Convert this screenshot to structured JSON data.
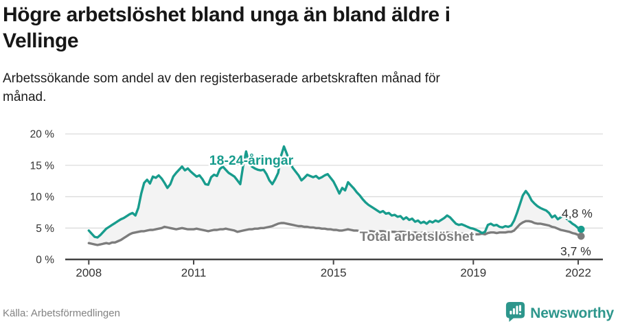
{
  "header": {
    "title_line1": "Högre arbetslöshet bland unga än bland äldre i",
    "title_line2": "Vellinge",
    "subtitle_line1": "Arbetssökande som andel av den registerbaserade arbetskraften månad för",
    "subtitle_line2": "månad."
  },
  "footer": {
    "source": "Källa: Arbetsförmedlingen",
    "brand_name": "Newsworthy",
    "brand_icon": "newsworthy-badge-icon"
  },
  "colors": {
    "youth": "#189c8d",
    "total": "#7c7c7c",
    "area_fill": "#f3f3f3",
    "grid": "#dcdcdc",
    "axis": "#424242",
    "tick_text": "#333333",
    "annotation_text": "#2f2f2f",
    "brand": "#2d968c",
    "source_text": "#828282"
  },
  "chart_data": {
    "type": "line",
    "title": "Högre arbetslöshet bland unga än bland äldre i Vellinge",
    "subtitle": "Arbetssökande som andel av den registerbaserade arbetskraften månad för månad.",
    "unit": "%",
    "frequency": "monthly",
    "x_start": "2008-01",
    "x_end": "2022-02",
    "ylim": [
      0,
      20
    ],
    "grid": true,
    "legend_position": "inline-labels",
    "y_ticks": [
      {
        "label": "20 %",
        "value": 20
      },
      {
        "label": "15 %",
        "value": 15
      },
      {
        "label": "10 %",
        "value": 10
      },
      {
        "label": "5 %",
        "value": 5
      },
      {
        "label": "0 %",
        "value": 0
      }
    ],
    "x_ticks": [
      {
        "label": "2008",
        "month": 0
      },
      {
        "label": "2011",
        "month": 36
      },
      {
        "label": "2015",
        "month": 84
      },
      {
        "label": "2019",
        "month": 132
      },
      {
        "label": "2022",
        "month": 168
      }
    ],
    "series": [
      {
        "name": "18-24-åringar",
        "inline_label": "18-24-åringar",
        "end_label": "4,8 %",
        "last_value": 4.8,
        "color": "#189c8d",
        "values": [
          4.6,
          4.1,
          3.6,
          3.5,
          3.9,
          4.4,
          4.9,
          5.2,
          5.5,
          5.8,
          6.1,
          6.4,
          6.6,
          6.9,
          7.2,
          7.4,
          7.0,
          8.2,
          10.5,
          12.2,
          12.7,
          12.1,
          13.2,
          13.0,
          13.4,
          12.9,
          12.2,
          11.4,
          12.0,
          13.2,
          13.8,
          14.3,
          14.8,
          14.2,
          14.5,
          14.0,
          13.6,
          13.2,
          13.4,
          12.8,
          12.0,
          11.9,
          13.1,
          13.5,
          13.3,
          14.4,
          14.8,
          14.3,
          13.8,
          13.5,
          13.2,
          12.6,
          12.0,
          15.0,
          17.2,
          15.4,
          14.8,
          14.5,
          14.3,
          14.2,
          14.3,
          13.6,
          12.6,
          12.0,
          12.8,
          13.8,
          16.5,
          18.0,
          16.8,
          15.5,
          14.6,
          14.0,
          13.4,
          12.6,
          13.0,
          13.5,
          13.3,
          13.1,
          13.3,
          12.9,
          13.1,
          13.4,
          13.6,
          13.0,
          12.4,
          11.5,
          10.5,
          11.4,
          11.0,
          12.3,
          11.8,
          11.3,
          10.7,
          10.2,
          9.6,
          9.1,
          8.7,
          8.4,
          8.1,
          7.8,
          7.5,
          7.7,
          7.3,
          7.4,
          7.0,
          7.1,
          6.8,
          6.9,
          6.4,
          6.7,
          6.3,
          6.5,
          6.0,
          6.2,
          5.8,
          6.0,
          5.7,
          6.1,
          5.9,
          6.2,
          6.0,
          6.3,
          6.6,
          7.0,
          6.7,
          6.2,
          5.7,
          5.5,
          5.6,
          5.4,
          5.2,
          5.0,
          4.9,
          4.7,
          4.5,
          4.2,
          4.4,
          5.5,
          5.7,
          5.4,
          5.5,
          5.2,
          5.1,
          5.3,
          5.2,
          5.4,
          6.2,
          7.4,
          8.8,
          10.2,
          10.9,
          10.3,
          9.4,
          8.9,
          8.5,
          8.2,
          8.0,
          7.8,
          7.4,
          6.7,
          7.0,
          6.4,
          6.7,
          7.2,
          6.5,
          6.1,
          5.7,
          5.4,
          5.0,
          4.8
        ]
      },
      {
        "name": "Total arbetslöshet",
        "inline_label": "Total arbetslöshet",
        "end_label": "3,7 %",
        "last_value": 3.7,
        "color": "#7c7c7c",
        "values": [
          2.6,
          2.5,
          2.4,
          2.3,
          2.4,
          2.5,
          2.6,
          2.5,
          2.7,
          2.7,
          2.9,
          3.1,
          3.4,
          3.7,
          4.0,
          4.2,
          4.3,
          4.4,
          4.5,
          4.5,
          4.6,
          4.7,
          4.7,
          4.8,
          4.9,
          5.0,
          5.2,
          5.1,
          5.0,
          4.9,
          4.8,
          4.9,
          5.0,
          4.9,
          4.8,
          4.8,
          4.8,
          4.9,
          4.8,
          4.7,
          4.6,
          4.5,
          4.6,
          4.7,
          4.7,
          4.8,
          4.8,
          4.9,
          4.8,
          4.7,
          4.6,
          4.4,
          4.5,
          4.6,
          4.7,
          4.8,
          4.8,
          4.9,
          4.9,
          5.0,
          5.0,
          5.1,
          5.2,
          5.3,
          5.5,
          5.7,
          5.8,
          5.8,
          5.7,
          5.6,
          5.5,
          5.4,
          5.3,
          5.3,
          5.2,
          5.2,
          5.1,
          5.1,
          5.0,
          5.0,
          4.9,
          4.9,
          4.8,
          4.8,
          4.7,
          4.7,
          4.6,
          4.6,
          4.7,
          4.8,
          4.7,
          4.6,
          4.6,
          4.5,
          4.5,
          4.5,
          4.5,
          4.5,
          4.4,
          4.4,
          4.5,
          4.5,
          4.4,
          4.5,
          4.4,
          4.4,
          4.3,
          4.4,
          4.4,
          4.3,
          4.3,
          4.2,
          4.3,
          4.2,
          4.2,
          4.3,
          4.2,
          4.2,
          4.2,
          4.3,
          4.2,
          4.2,
          4.2,
          4.3,
          4.2,
          4.2,
          4.1,
          4.1,
          4.1,
          4.1,
          4.0,
          4.0,
          4.0,
          4.0,
          4.0,
          4.1,
          4.0,
          4.2,
          4.3,
          4.3,
          4.2,
          4.3,
          4.3,
          4.3,
          4.4,
          4.4,
          4.6,
          5.1,
          5.6,
          5.9,
          6.1,
          6.1,
          6.0,
          5.8,
          5.7,
          5.7,
          5.6,
          5.5,
          5.4,
          5.2,
          5.1,
          4.9,
          4.7,
          4.6,
          4.5,
          4.4,
          4.2,
          4.1,
          3.9,
          3.7
        ]
      }
    ]
  }
}
